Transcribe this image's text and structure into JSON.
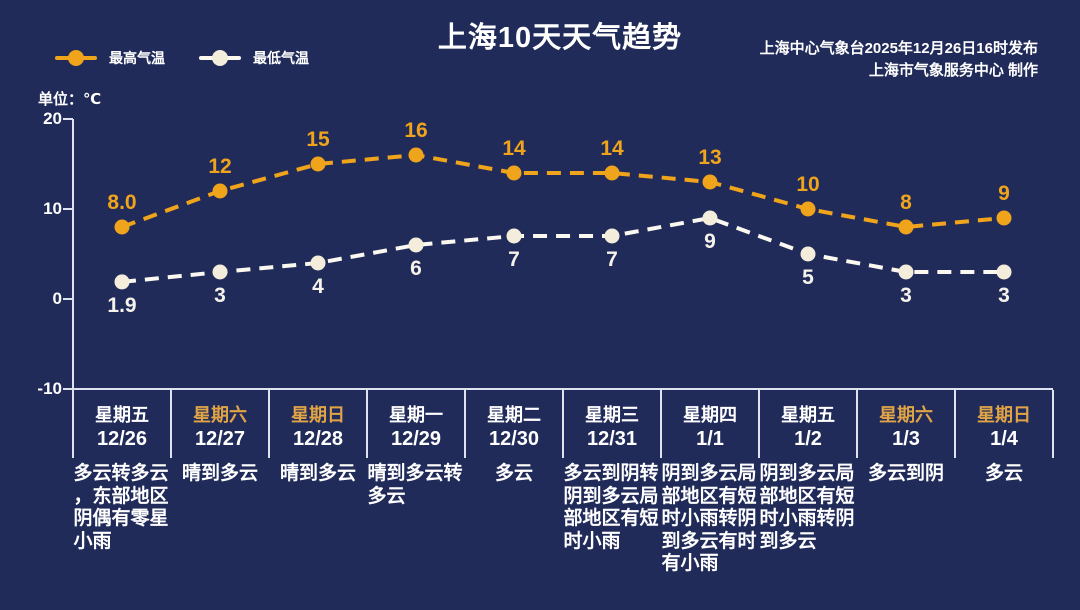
{
  "title": "上海10天天气趋势",
  "source": {
    "line1": "上海中心气象台2025年12月26日16时发布",
    "line2": "上海市气象服务中心  制作"
  },
  "unit_label": "单位：℃",
  "legend": {
    "max_label": "最高气温",
    "min_label": "最低气温"
  },
  "colors": {
    "background": "#212B5A",
    "max": "#F0A41C",
    "min_line": "#FBF8F0",
    "min_dot": "#F5EDDC",
    "min_label": "#F6F3EA",
    "weekend": "#E0A446",
    "text": "#FFFFFF",
    "axis": "#DDE4F0"
  },
  "chart_data": {
    "type": "line",
    "title": "上海10天天气趋势",
    "ylabel": "单位：℃",
    "unit": "℃",
    "x_categories": [
      "12/26",
      "12/27",
      "12/28",
      "12/29",
      "12/30",
      "12/31",
      "1/1",
      "1/2",
      "1/3",
      "1/4"
    ],
    "yticks": [
      20,
      10,
      0,
      -10
    ],
    "ylim": [
      -10,
      20
    ],
    "grid": false,
    "line_style": "dashed",
    "legend_position": "top-left",
    "series": [
      {
        "name": "最高气温",
        "values": [
          8.0,
          12,
          15,
          16,
          14,
          14,
          13,
          10,
          8,
          9
        ],
        "labels": [
          "8.0",
          "12",
          "15",
          "16",
          "14",
          "14",
          "13",
          "10",
          "8",
          "9"
        ],
        "label_position": "above"
      },
      {
        "name": "最低气温",
        "values": [
          1.9,
          3,
          4,
          6,
          7,
          7,
          9,
          5,
          3,
          3
        ],
        "labels": [
          "1.9",
          "3",
          "4",
          "6",
          "7",
          "7",
          "9",
          "5",
          "3",
          "3"
        ],
        "label_position": "below"
      }
    ]
  },
  "columns": [
    {
      "weekday": "星期五",
      "date": "12/26",
      "weather": "多云转多云，东部地区阴偶有零星小雨",
      "weekend": false
    },
    {
      "weekday": "星期六",
      "date": "12/27",
      "weather": "晴到多云",
      "weekend": true
    },
    {
      "weekday": "星期日",
      "date": "12/28",
      "weather": "晴到多云",
      "weekend": true
    },
    {
      "weekday": "星期一",
      "date": "12/29",
      "weather": "晴到多云转多云",
      "weekend": false
    },
    {
      "weekday": "星期二",
      "date": "12/30",
      "weather": "多云",
      "weekend": false
    },
    {
      "weekday": "星期三",
      "date": "12/31",
      "weather": "多云到阴转阴到多云局部地区有短时小雨",
      "weekend": false
    },
    {
      "weekday": "星期四",
      "date": "1/1",
      "weather": "阴到多云局部地区有短时小雨转阴到多云有时有小雨",
      "weekend": false
    },
    {
      "weekday": "星期五",
      "date": "1/2",
      "weather": "阴到多云局部地区有短时小雨转阴到多云",
      "weekend": false
    },
    {
      "weekday": "星期六",
      "date": "1/3",
      "weather": "多云到阴",
      "weekend": true
    },
    {
      "weekday": "星期日",
      "date": "1/4",
      "weather": "多云",
      "weekend": true
    }
  ]
}
